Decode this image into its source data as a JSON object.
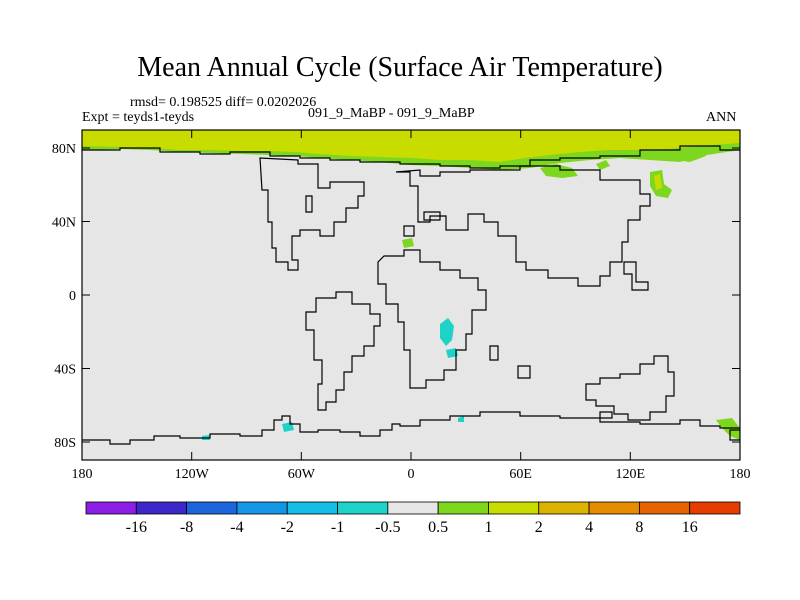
{
  "header": {
    "title": "Mean Annual Cycle (Surface Air Temperature)",
    "stats": "rmsd= 0.198525 diff= 0.0202026",
    "expt": "Expt = teyds1-teyds",
    "case": "091_9_MaBP - 091_9_MaBP",
    "season": "ANN"
  },
  "map_axes": {
    "lon_ticks": [
      "180",
      "120W",
      "60W",
      "0",
      "60E",
      "120E",
      "180"
    ],
    "lat_ticks": [
      "80N",
      "40N",
      "0",
      "40S",
      "80S"
    ]
  },
  "colorbar": {
    "labels": [
      "-16",
      "-8",
      "-4",
      "-2",
      "-1",
      "-0.5",
      "0.5",
      "1",
      "2",
      "4",
      "8",
      "16"
    ],
    "colors": [
      "#8c1ee6",
      "#3c28c8",
      "#1e64dc",
      "#1496e6",
      "#14bee6",
      "#1ed2c8",
      "#e6e6e6",
      "#7dd71e",
      "#c8dc00",
      "#dcb400",
      "#e68c00",
      "#e66400",
      "#e63c00"
    ]
  },
  "colors": {
    "background": "#e6e6e6",
    "coastline": "#000000",
    "positive_light": "#7dd71e",
    "positive_mid": "#c8dc00",
    "negative_light": "#1ed2c8"
  }
}
